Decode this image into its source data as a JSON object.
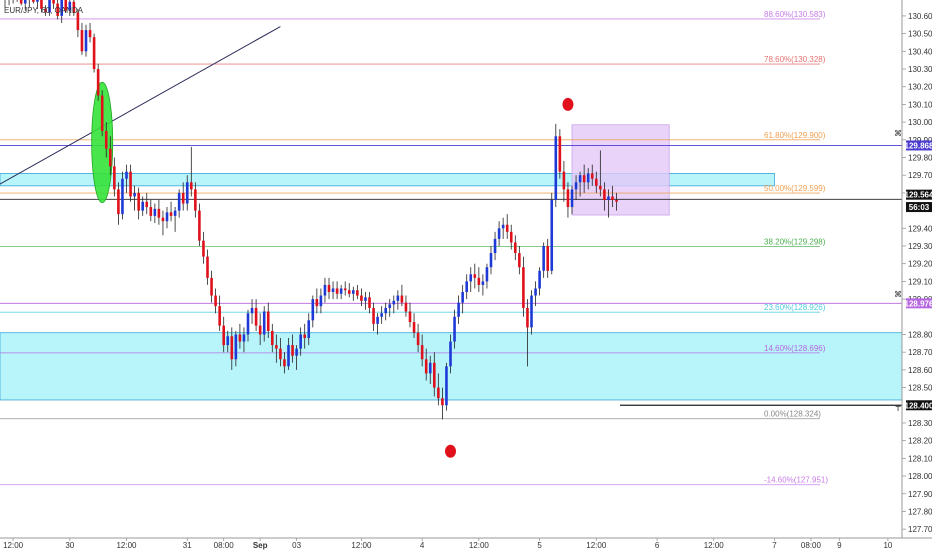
{
  "symbol_label": "EUR/JPY, 60, OANDA",
  "colors": {
    "up_candle": "#1e3ad6",
    "down_candle": "#e0111b",
    "wick": "#222222",
    "zone_fill": "#b8f5fb",
    "zone_border": "#3aa6d8",
    "box_fill": "#e3c8f8",
    "markers": "#e0111b",
    "green_ellipse": "#35e238"
  },
  "chart_data": {
    "type": "candlestick",
    "y_axis": {
      "min": 127.65,
      "max": 130.69,
      "ticks": [
        130.6,
        130.5,
        130.4,
        130.3,
        130.2,
        130.1,
        130.0,
        129.9,
        129.8,
        129.7,
        129.6,
        129.4,
        129.3,
        129.2,
        129.1,
        129.0,
        128.8,
        128.7,
        128.6,
        128.5,
        128.3,
        128.2,
        128.1,
        128.0,
        127.9,
        127.8,
        127.7
      ],
      "tick_labels": [
        "130.600",
        "130.500",
        "130.400",
        "130.300",
        "130.200",
        "130.100",
        "130.000",
        "129.900",
        "129.800",
        "129.700",
        "129.600",
        "129.400",
        "129.300",
        "129.200",
        "129.100",
        "129.000",
        "128.800",
        "128.700",
        "128.600",
        "128.500",
        "128.300",
        "128.200",
        "128.100",
        "128.000",
        "127.900",
        "127.800",
        "127.700"
      ]
    },
    "x_axis": {
      "ticks": [
        {
          "i": 2,
          "label": "12:00"
        },
        {
          "i": 16,
          "label": "30"
        },
        {
          "i": 30,
          "label": "12:00"
        },
        {
          "i": 45,
          "label": "31"
        },
        {
          "i": 54,
          "label": "08:00"
        },
        {
          "i": 63,
          "label": "Sep"
        },
        {
          "i": 72,
          "label": "03"
        },
        {
          "i": 88,
          "label": "12:00"
        },
        {
          "i": 103,
          "label": "4"
        },
        {
          "i": 117,
          "label": "12:00"
        },
        {
          "i": 132,
          "label": "5"
        },
        {
          "i": 146,
          "label": "12:00"
        },
        {
          "i": 161,
          "label": "6"
        },
        {
          "i": 175,
          "label": "12:00"
        },
        {
          "i": 190,
          "label": "7"
        },
        {
          "i": 199,
          "label": "08:00"
        },
        {
          "i": 206,
          "label": "9"
        },
        {
          "i": 218,
          "label": "10"
        }
      ]
    },
    "fibonacci": [
      {
        "label": "88.60%(130.583)",
        "value": 130.583,
        "color": "#c77be8"
      },
      {
        "label": "78.60%(130.328)",
        "value": 130.328,
        "color": "#e57373"
      },
      {
        "label": "61.80%(129.900)",
        "value": 129.9,
        "color": "#f0a050"
      },
      {
        "label": "50.00%(129.599)",
        "value": 129.599,
        "color": "#f0a050"
      },
      {
        "label": "38.20%(129.298)",
        "value": 129.298,
        "color": "#4caf50"
      },
      {
        "label": "23.60%(128.926)",
        "value": 128.926,
        "color": "#4ecbe0"
      },
      {
        "label": "14.60%(128.696)",
        "value": 128.696,
        "color": "#b566e0"
      },
      {
        "label": "0.00%(128.324)",
        "value": 128.324,
        "color": "#888888"
      },
      {
        "label": "-14.60%(127.951)",
        "value": 127.951,
        "color": "#c77be8"
      }
    ],
    "horizontal_lines": [
      {
        "value": 129.868,
        "color": "#4a3bd0",
        "label": "129.868"
      },
      {
        "value": 128.976,
        "color": "#b566e0",
        "label": "128.976"
      },
      {
        "value": 128.4,
        "color": "#222222",
        "label": "128.400"
      },
      {
        "value": 129.564,
        "color": "#222222",
        "label": "129.564"
      }
    ],
    "price_tags": [
      {
        "label": "129.868",
        "value": 129.868,
        "bg": "#4a3bd0"
      },
      {
        "label": "129.564",
        "value": 129.59,
        "bg": "#111111"
      },
      {
        "label": "56:03",
        "value": 129.52,
        "bg": "#111111"
      },
      {
        "label": "128.976",
        "value": 128.976,
        "bg": "#b566e0"
      },
      {
        "label": "128.400",
        "value": 128.4,
        "bg": "#111111"
      }
    ],
    "zones": [
      {
        "x0_i": -2,
        "x1_i": 190,
        "y0": 129.71,
        "y1": 129.64
      },
      {
        "x0_i": -2,
        "x1_i": 226,
        "y0": 128.81,
        "y1": 128.43
      }
    ],
    "box": {
      "x0_i": 140,
      "x1_i": 164,
      "y0": 129.985,
      "y1": 129.475
    },
    "trendline": {
      "i0": -2,
      "v0": 129.64,
      "i1": 68,
      "v1": 130.54
    },
    "ellipse": {
      "i": 24,
      "value": 129.885,
      "rx_i": 2.6,
      "ry_v": 0.34
    },
    "markers": [
      {
        "i": 139,
        "value": 130.1
      },
      {
        "i": 110,
        "value": 128.14
      }
    ],
    "candles": [
      [
        130.71,
        130.72,
        130.65,
        130.69
      ],
      [
        130.69,
        130.73,
        130.66,
        130.7
      ],
      [
        130.7,
        130.74,
        130.67,
        130.72
      ],
      [
        130.72,
        130.75,
        130.68,
        130.71
      ],
      [
        130.71,
        130.73,
        130.66,
        130.67
      ],
      [
        130.67,
        130.7,
        130.63,
        130.69
      ],
      [
        130.69,
        130.72,
        130.65,
        130.71
      ],
      [
        130.71,
        130.74,
        130.67,
        130.68
      ],
      [
        130.68,
        130.71,
        130.64,
        130.7
      ],
      [
        130.7,
        130.73,
        130.62,
        130.64
      ],
      [
        130.64,
        130.66,
        130.6,
        130.62
      ],
      [
        130.62,
        130.72,
        130.6,
        130.7
      ],
      [
        130.7,
        130.73,
        130.64,
        130.67
      ],
      [
        130.67,
        130.69,
        130.58,
        130.6
      ],
      [
        130.6,
        130.72,
        130.56,
        130.7
      ],
      [
        130.7,
        130.73,
        130.62,
        130.63
      ],
      [
        130.63,
        130.7,
        130.6,
        130.68
      ],
      [
        130.68,
        130.72,
        130.6,
        130.62
      ],
      [
        130.62,
        130.64,
        130.48,
        130.52
      ],
      [
        130.52,
        130.56,
        130.38,
        130.4
      ],
      [
        130.4,
        130.55,
        130.37,
        130.52
      ],
      [
        130.52,
        130.56,
        130.45,
        130.48
      ],
      [
        130.48,
        130.5,
        130.28,
        130.3
      ],
      [
        130.3,
        130.33,
        130.12,
        130.15
      ],
      [
        130.15,
        130.18,
        129.92,
        129.95
      ],
      [
        129.95,
        130.0,
        129.8,
        129.85
      ],
      [
        129.85,
        129.92,
        129.7,
        129.75
      ],
      [
        129.75,
        129.8,
        129.58,
        129.62
      ],
      [
        129.62,
        129.66,
        129.42,
        129.48
      ],
      [
        129.48,
        129.72,
        129.45,
        129.68
      ],
      [
        129.68,
        129.76,
        129.6,
        129.72
      ],
      [
        129.72,
        129.76,
        129.55,
        129.58
      ],
      [
        129.58,
        129.64,
        129.5,
        129.6
      ],
      [
        129.6,
        129.63,
        129.45,
        129.5
      ],
      [
        129.5,
        129.58,
        129.47,
        129.55
      ],
      [
        129.55,
        129.6,
        129.48,
        129.52
      ],
      [
        129.52,
        129.56,
        129.44,
        129.47
      ],
      [
        129.47,
        129.54,
        129.43,
        129.51
      ],
      [
        129.51,
        129.56,
        129.42,
        129.46
      ],
      [
        129.46,
        129.5,
        129.36,
        129.44
      ],
      [
        129.44,
        129.52,
        129.4,
        129.49
      ],
      [
        129.49,
        129.55,
        129.44,
        129.47
      ],
      [
        129.47,
        129.52,
        129.38,
        129.5
      ],
      [
        129.5,
        129.62,
        129.46,
        129.6
      ],
      [
        129.6,
        129.66,
        129.5,
        129.54
      ],
      [
        129.54,
        129.7,
        129.5,
        129.66
      ],
      [
        129.66,
        129.86,
        129.58,
        129.62
      ],
      [
        129.62,
        129.66,
        129.46,
        129.5
      ],
      [
        129.5,
        129.54,
        129.3,
        129.33
      ],
      [
        129.33,
        129.38,
        129.2,
        129.24
      ],
      [
        129.24,
        129.28,
        129.08,
        129.12
      ],
      [
        129.12,
        129.16,
        128.98,
        129.02
      ],
      [
        129.02,
        129.06,
        128.92,
        128.96
      ],
      [
        128.96,
        129.02,
        128.82,
        128.85
      ],
      [
        128.85,
        128.9,
        128.7,
        128.74
      ],
      [
        128.74,
        128.82,
        128.7,
        128.79
      ],
      [
        128.79,
        128.84,
        128.6,
        128.66
      ],
      [
        128.66,
        128.82,
        128.62,
        128.8
      ],
      [
        128.8,
        128.86,
        128.72,
        128.76
      ],
      [
        128.76,
        128.84,
        128.7,
        128.8
      ],
      [
        128.8,
        128.94,
        128.76,
        128.92
      ],
      [
        128.92,
        129.0,
        128.86,
        128.95
      ],
      [
        128.95,
        129.0,
        128.82,
        128.85
      ],
      [
        128.85,
        128.92,
        128.74,
        128.8
      ],
      [
        128.8,
        128.96,
        128.76,
        128.93
      ],
      [
        128.93,
        128.98,
        128.78,
        128.82
      ],
      [
        128.82,
        128.86,
        128.7,
        128.74
      ],
      [
        128.74,
        128.8,
        128.64,
        128.72
      ],
      [
        128.72,
        128.78,
        128.62,
        128.66
      ],
      [
        128.66,
        128.7,
        128.58,
        128.62
      ],
      [
        128.62,
        128.78,
        128.6,
        128.74
      ],
      [
        128.74,
        128.8,
        128.64,
        128.68
      ],
      [
        128.68,
        128.74,
        128.6,
        128.72
      ],
      [
        128.72,
        128.84,
        128.68,
        128.8
      ],
      [
        128.8,
        128.86,
        128.72,
        128.78
      ],
      [
        128.78,
        128.92,
        128.74,
        128.88
      ],
      [
        128.88,
        129.02,
        128.84,
        129.0
      ],
      [
        129.0,
        129.06,
        128.92,
        128.96
      ],
      [
        128.96,
        129.06,
        128.92,
        129.02
      ],
      [
        129.02,
        129.12,
        128.98,
        129.08
      ],
      [
        129.08,
        129.12,
        129.0,
        129.04
      ],
      [
        129.04,
        129.1,
        129.0,
        129.06
      ],
      [
        129.06,
        129.1,
        129.0,
        129.03
      ],
      [
        129.03,
        129.08,
        129.0,
        129.06
      ],
      [
        129.06,
        129.1,
        129.02,
        129.05
      ],
      [
        129.05,
        129.09,
        129.01,
        129.03
      ],
      [
        129.03,
        129.07,
        128.99,
        129.05
      ],
      [
        129.05,
        129.08,
        129.0,
        129.02
      ],
      [
        129.02,
        129.06,
        128.96,
        128.99
      ],
      [
        128.99,
        129.04,
        128.94,
        129.01
      ],
      [
        129.01,
        129.04,
        128.92,
        128.95
      ],
      [
        128.95,
        128.98,
        128.82,
        128.86
      ],
      [
        128.86,
        128.92,
        128.8,
        128.9
      ],
      [
        128.9,
        128.96,
        128.86,
        128.92
      ],
      [
        128.92,
        128.98,
        128.88,
        128.95
      ],
      [
        128.95,
        129.0,
        128.9,
        128.97
      ],
      [
        128.97,
        129.02,
        128.92,
        128.99
      ],
      [
        128.99,
        129.05,
        128.94,
        129.02
      ],
      [
        129.02,
        129.08,
        128.96,
        128.98
      ],
      [
        128.98,
        129.02,
        128.9,
        128.93
      ],
      [
        128.93,
        128.98,
        128.84,
        128.87
      ],
      [
        128.87,
        128.92,
        128.78,
        128.81
      ],
      [
        128.81,
        128.86,
        128.7,
        128.74
      ],
      [
        128.74,
        128.8,
        128.62,
        128.66
      ],
      [
        128.66,
        128.72,
        128.54,
        128.58
      ],
      [
        128.58,
        128.68,
        128.52,
        128.64
      ],
      [
        128.64,
        128.7,
        128.45,
        128.5
      ],
      [
        128.5,
        128.58,
        128.4,
        128.44
      ],
      [
        128.44,
        128.5,
        128.32,
        128.4
      ],
      [
        128.4,
        128.64,
        128.37,
        128.62
      ],
      [
        128.62,
        128.8,
        128.58,
        128.76
      ],
      [
        128.76,
        128.94,
        128.72,
        128.9
      ],
      [
        128.9,
        129.02,
        128.86,
        128.98
      ],
      [
        128.98,
        129.08,
        128.92,
        129.04
      ],
      [
        129.04,
        129.14,
        129.0,
        129.1
      ],
      [
        129.1,
        129.18,
        129.04,
        129.14
      ],
      [
        129.14,
        129.2,
        129.06,
        129.12
      ],
      [
        129.12,
        129.18,
        129.04,
        129.08
      ],
      [
        129.08,
        129.14,
        129.02,
        129.1
      ],
      [
        129.1,
        129.2,
        129.06,
        129.18
      ],
      [
        129.18,
        129.3,
        129.14,
        129.26
      ],
      [
        129.26,
        129.38,
        129.22,
        129.34
      ],
      [
        129.34,
        129.44,
        129.3,
        129.4
      ],
      [
        129.4,
        129.46,
        129.34,
        129.42
      ],
      [
        129.42,
        129.48,
        129.34,
        129.38
      ],
      [
        129.38,
        129.42,
        129.28,
        129.32
      ],
      [
        129.32,
        129.36,
        129.22,
        129.26
      ],
      [
        129.26,
        129.3,
        129.14,
        129.18
      ],
      [
        129.18,
        129.24,
        128.9,
        128.95
      ],
      [
        128.95,
        129.0,
        128.62,
        128.84
      ],
      [
        128.84,
        129.05,
        128.8,
        129.02
      ],
      [
        129.02,
        129.1,
        128.96,
        129.06
      ],
      [
        129.06,
        129.18,
        129.02,
        129.16
      ],
      [
        129.16,
        129.32,
        129.12,
        129.3
      ],
      [
        129.3,
        129.34,
        129.12,
        129.16
      ],
      [
        129.16,
        129.6,
        129.14,
        129.56
      ],
      [
        129.56,
        129.99,
        129.52,
        129.92
      ],
      [
        129.92,
        129.96,
        129.68,
        129.72
      ],
      [
        129.72,
        129.78,
        129.55,
        129.62
      ],
      [
        129.62,
        129.66,
        129.46,
        129.52
      ],
      [
        129.52,
        129.64,
        129.48,
        129.62
      ],
      [
        129.62,
        129.7,
        129.56,
        129.66
      ],
      [
        129.66,
        129.72,
        129.58,
        129.7
      ],
      [
        129.7,
        129.76,
        129.6,
        129.66
      ],
      [
        129.66,
        129.74,
        129.62,
        129.71
      ],
      [
        129.71,
        129.76,
        129.64,
        129.68
      ],
      [
        129.68,
        129.72,
        129.6,
        129.64
      ],
      [
        129.64,
        129.84,
        129.58,
        129.62
      ],
      [
        129.62,
        129.66,
        129.5,
        129.56
      ],
      [
        129.56,
        129.62,
        129.46,
        129.58
      ],
      [
        129.58,
        129.64,
        129.52,
        129.56
      ],
      [
        129.56,
        129.6,
        129.5,
        129.55
      ]
    ]
  }
}
